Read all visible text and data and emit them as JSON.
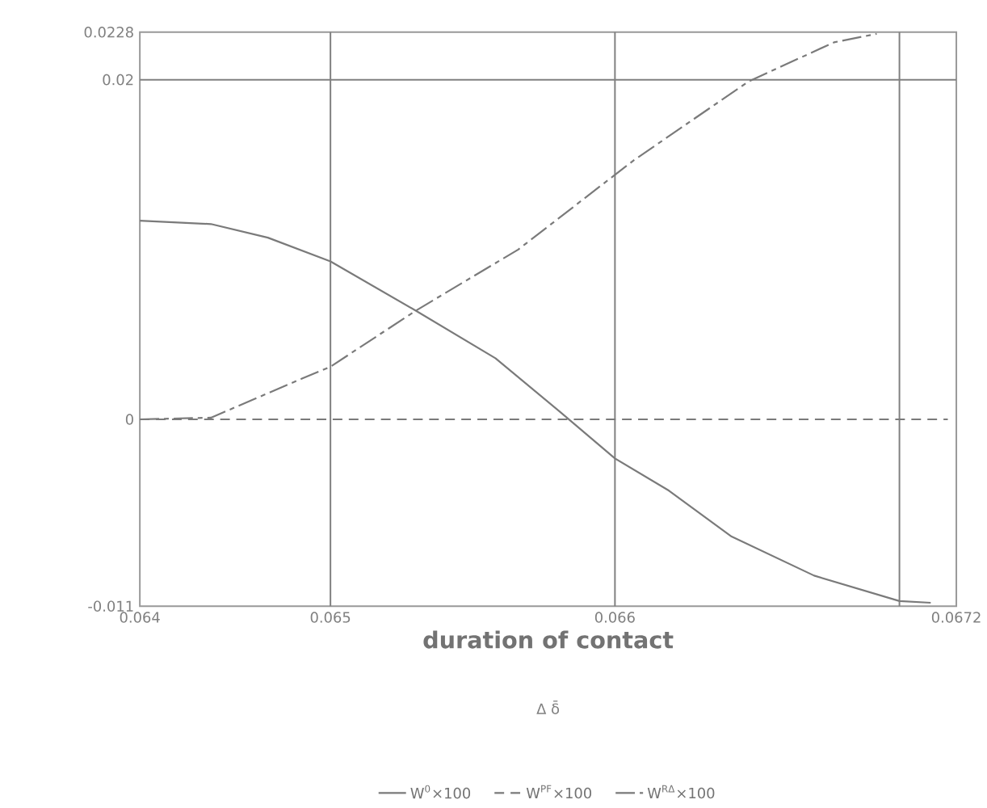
{
  "chart_data": {
    "type": "line",
    "xlabel": "duration of contact",
    "annotations": [
      "Δ δ̄"
    ],
    "xlim": [
      0.06433,
      0.0672
    ],
    "ylim": [
      -0.011,
      0.0228
    ],
    "xticks": [
      {
        "value": 0.06433,
        "label": "0.064"
      },
      0.065,
      0.066,
      0.0672
    ],
    "yticks": [
      -0.011,
      0,
      0.02,
      0.0228
    ],
    "ref_lines": [
      {
        "axis": "x",
        "value": 0.065,
        "color": "#808080"
      },
      {
        "axis": "x",
        "value": 0.066,
        "color": "#808080"
      },
      {
        "axis": "x",
        "value": 0.067,
        "color": "#808080"
      },
      {
        "axis": "y",
        "value": 0.02,
        "color": "#808080"
      }
    ],
    "legend": "bottom",
    "grid": false,
    "marker": "none",
    "series": [
      {
        "name": "W$^{0}$×100",
        "color": "#7a7a7a",
        "line_style": "solid",
        "x": [
          0.06433,
          0.06458,
          0.06478,
          0.065,
          0.0653,
          0.06558,
          0.06581,
          0.066,
          0.06619,
          0.06641,
          0.0667,
          0.067,
          0.06711
        ],
        "values": [
          0.0117,
          0.0115,
          0.0107,
          0.0093,
          0.0064,
          0.0036,
          0.0004,
          -0.0023,
          -0.0042,
          -0.0069,
          -0.0092,
          -0.0107,
          -0.0108
        ]
      },
      {
        "name": "W$^{PF}$×100",
        "color": "#7a7a7a",
        "line_style": "dashed",
        "x": [
          0.06433,
          0.06717
        ],
        "values": [
          0,
          0
        ]
      },
      {
        "name": "W$^{RΔ}$×100",
        "color": "#7a7a7a",
        "line_style": "dashdot",
        "x": [
          0.06433,
          0.06458,
          0.0649,
          0.065,
          0.0653,
          0.06566,
          0.066,
          0.06607,
          0.06647,
          0.06677,
          0.06692
        ],
        "values": [
          0,
          0.0001,
          0.0024,
          0.0031,
          0.0064,
          0.01,
          0.0144,
          0.0153,
          0.0199,
          0.0222,
          0.0227
        ]
      }
    ]
  }
}
